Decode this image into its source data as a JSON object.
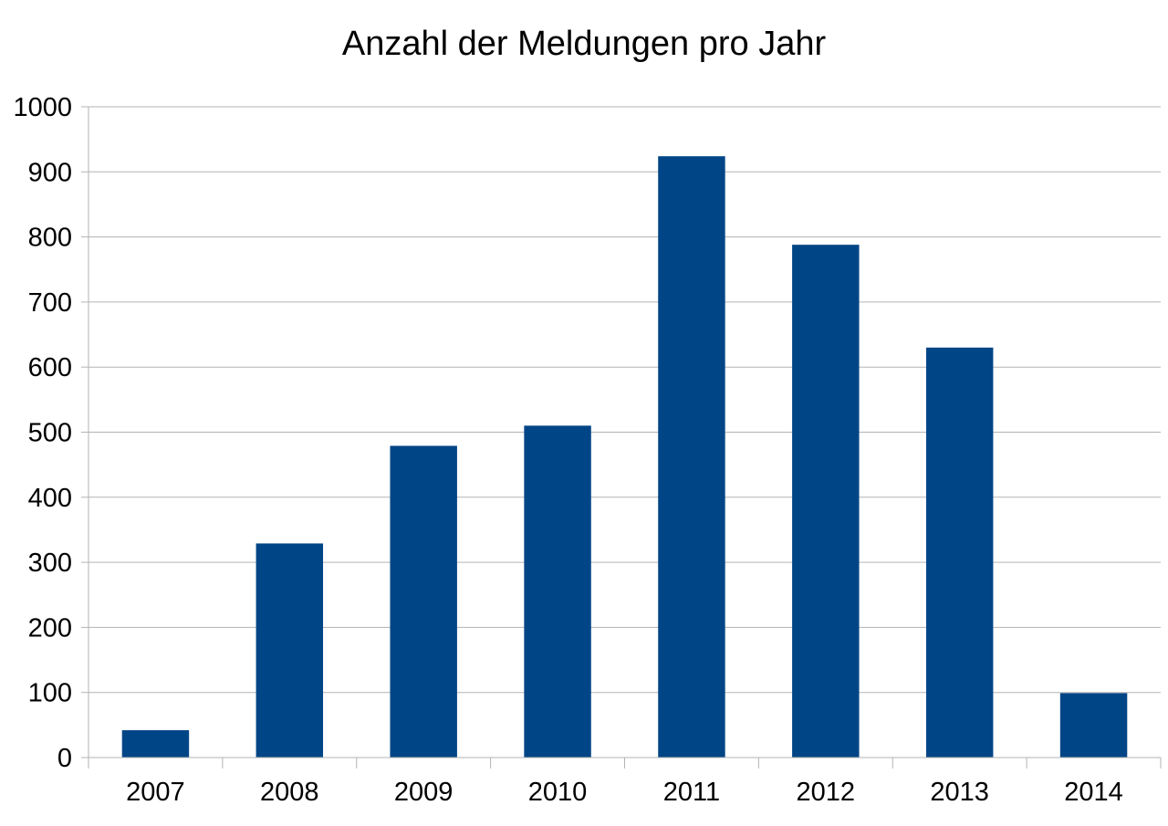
{
  "chart_data": {
    "type": "bar",
    "title": "Anzahl der Meldungen pro Jahr",
    "xlabel": "",
    "ylabel": "",
    "categories": [
      "2007",
      "2008",
      "2009",
      "2010",
      "2011",
      "2012",
      "2013",
      "2014"
    ],
    "values": [
      42,
      329,
      479,
      510,
      924,
      788,
      630,
      99
    ],
    "ylim": [
      0,
      1000
    ],
    "yticks": [
      "0",
      "100",
      "200",
      "300",
      "400",
      "500",
      "600",
      "700",
      "800",
      "900",
      "1000"
    ],
    "grid": true,
    "legend": "none",
    "bar_color": "#004586",
    "grid_color": "#b3b3b3"
  }
}
